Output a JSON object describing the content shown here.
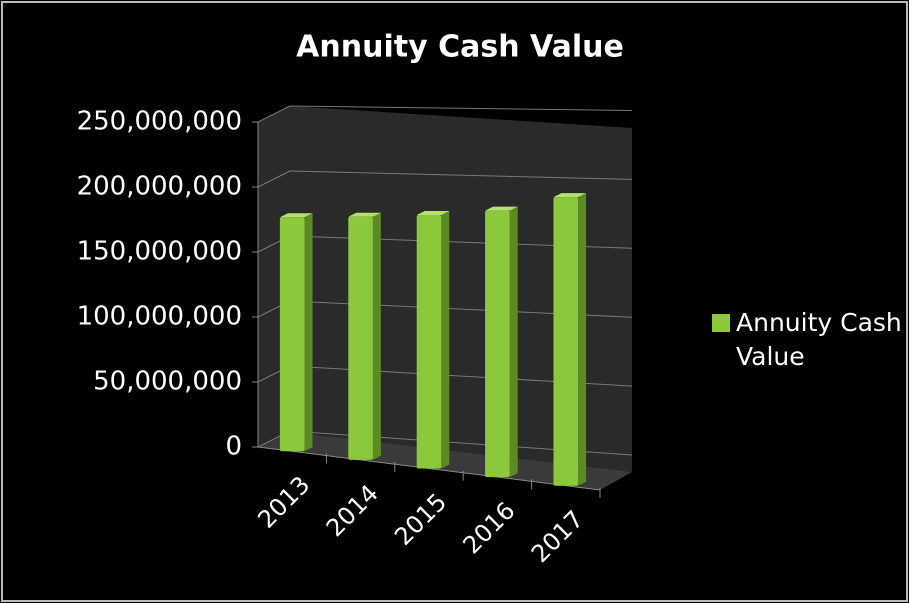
{
  "chart_data": {
    "type": "bar3d",
    "title": "Annuity Cash Value",
    "categories": [
      "2013",
      "2014",
      "2015",
      "2016",
      "2017"
    ],
    "series": [
      {
        "name": "Annuity Cash Value",
        "color": "#8cc83c",
        "values": [
          180000000,
          187000000,
          195000000,
          205000000,
          222000000
        ]
      }
    ],
    "ylim": [
      0,
      250000000
    ],
    "yticks": [
      0,
      {
        "value": 50000000,
        "label": "50,000,000"
      },
      {
        "value": 100000000,
        "label": "100,000,000"
      },
      {
        "value": 150000000,
        "label": "150,000,000"
      },
      {
        "value": 200000000,
        "label": "200,000,000"
      },
      {
        "value": 250000000,
        "label": "250,000,000"
      }
    ],
    "grid": true,
    "legend": "right"
  }
}
